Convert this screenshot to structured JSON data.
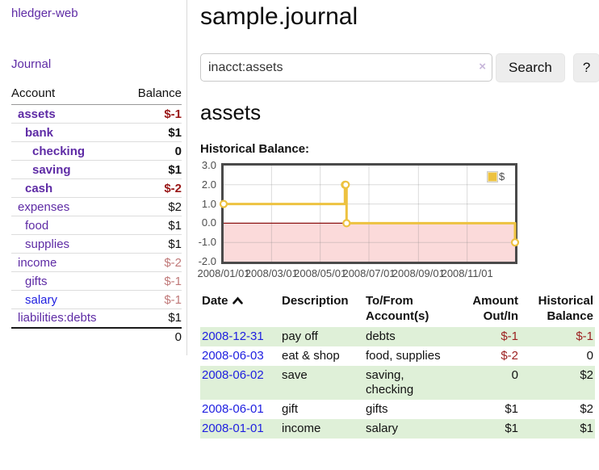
{
  "sidebar": {
    "brand": "hledger-web",
    "nav": {
      "journal": "Journal"
    },
    "accounts_table": {
      "header": {
        "account": "Account",
        "balance": "Balance"
      },
      "rows": [
        {
          "name": "assets",
          "depth": 1,
          "balance": "$-1",
          "in_selected": true
        },
        {
          "name": "bank",
          "depth": 2,
          "balance": "$1",
          "in_selected": true
        },
        {
          "name": "checking",
          "depth": 3,
          "balance": "0",
          "in_selected": true
        },
        {
          "name": "saving",
          "depth": 3,
          "balance": "$1",
          "in_selected": true
        },
        {
          "name": "cash",
          "depth": 2,
          "balance": "$-2",
          "in_selected": true
        },
        {
          "name": "expenses",
          "depth": 1,
          "balance": "$2"
        },
        {
          "name": "food",
          "depth": 2,
          "balance": "$1"
        },
        {
          "name": "supplies",
          "depth": 2,
          "balance": "$1"
        },
        {
          "name": "income",
          "depth": 1,
          "balance": "$-2"
        },
        {
          "name": "gifts",
          "depth": 2,
          "balance": "$-1"
        },
        {
          "name": "salary",
          "depth": 2,
          "balance": "$-1",
          "link_color": "blue"
        },
        {
          "name": "liabilities:debts",
          "depth": 1,
          "balance": "$1"
        }
      ],
      "total": "0"
    }
  },
  "main": {
    "title": "sample.journal",
    "search": {
      "value": "inacct:assets",
      "clear_icon": "×",
      "search_button": "Search",
      "help_button": "?"
    },
    "account_heading": "assets",
    "chart_title": "Historical Balance:"
  },
  "chart_data": {
    "type": "line",
    "step": true,
    "title": "Historical Balance:",
    "series": [
      {
        "name": "$",
        "color": "#edc240",
        "points": [
          [
            "2008/01/01",
            1
          ],
          [
            "2008/06/01",
            2
          ],
          [
            "2008/06/02",
            2
          ],
          [
            "2008/06/03",
            0
          ],
          [
            "2008/12/31",
            -1
          ]
        ]
      }
    ],
    "xlim": [
      "2008/01/01",
      "2008/12/31"
    ],
    "ylim": [
      -2,
      3
    ],
    "x_ticks": [
      "2008/01/01",
      "2008/03/01",
      "2008/05/01",
      "2008/07/01",
      "2008/09/01",
      "2008/11/01"
    ],
    "y_ticks": [
      "3.0",
      "2.0",
      "1.0",
      "0.0",
      "-1.0",
      "-2.0"
    ],
    "legend": {
      "label": "$",
      "position": "top-right"
    },
    "grid": true,
    "negative_region_fill": "#fbdada",
    "zero_line_color": "#8b1010"
  },
  "register": {
    "columns": [
      "Date",
      "Description",
      "To/From Account(s)",
      "Amount Out/In",
      "Historical Balance"
    ],
    "sort": {
      "column": "Date",
      "direction": "asc"
    },
    "rows": [
      {
        "date": "2008-12-31",
        "description": "pay off",
        "accounts": "debts",
        "amount": "$-1",
        "balance": "$-1"
      },
      {
        "date": "2008-06-03",
        "description": "eat & shop",
        "accounts": "food, supplies",
        "amount": "$-2",
        "balance": "0"
      },
      {
        "date": "2008-06-02",
        "description": "save",
        "accounts": "saving, checking",
        "amount": "0",
        "balance": "$2"
      },
      {
        "date": "2008-06-01",
        "description": "gift",
        "accounts": "gifts",
        "amount": "$1",
        "balance": "$2"
      },
      {
        "date": "2008-01-01",
        "description": "income",
        "accounts": "salary",
        "amount": "$1",
        "balance": "$1"
      }
    ]
  },
  "colors": {
    "link_purple": "#5e2ba5",
    "link_blue": "#1e1ee0",
    "negative_strong": "#991717",
    "negative_faded": "#c07979",
    "stripe_green": "#dff0d8",
    "series_gold": "#edc240"
  }
}
